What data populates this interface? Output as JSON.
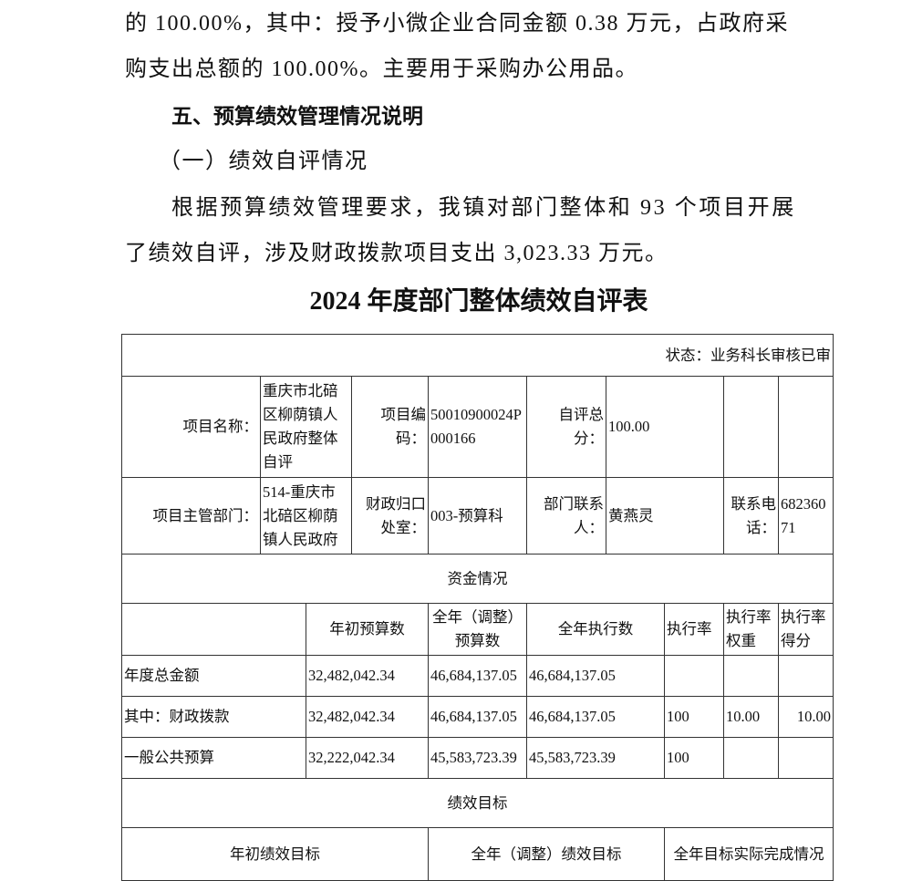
{
  "body": {
    "line1": "的 100.00%，其中：授予小微企业合同金额 0.38 万元，占政府采",
    "line2": "购支出总额的 100.00%。主要用于采购办公用品。",
    "heading5": "五、预算绩效管理情况说明",
    "subheading1": "（一）绩效自评情况",
    "line3": "根据预算绩效管理要求，我镇对部门整体和 93 个项目开展",
    "line4": "了绩效自评，涉及财政拨款项目支出 3,023.33 万元。"
  },
  "table": {
    "title": "2024 年度部门整体绩效自评表",
    "status": "状态：业务科长审核已审",
    "project_name_label": "项目名称：",
    "project_name": "重庆市北碚区柳荫镇人民政府整体自评",
    "project_code_label": "项目编码：",
    "project_code": "50010900024P000166",
    "score_label": "自评总分：",
    "score": "100.00",
    "dept_label": "项目主管部门：",
    "dept": "514-重庆市北碚区柳荫镇人民政府",
    "office_label": "财政归口处室：",
    "office": "003-预算科",
    "contact_label": "部门联系人：",
    "contact": "黄燕灵",
    "phone_label": "联系电话：",
    "phone": "68236071",
    "funds_header": "资金情况",
    "funds_columns": [
      "",
      "年初预算数",
      "全年（调整）预算数",
      "全年执行数",
      "执行率",
      "执行率权重",
      "执行率得分"
    ],
    "funds_rows": [
      [
        "年度总金额",
        "32,482,042.34",
        "46,684,137.05",
        "46,684,137.05",
        "",
        "",
        ""
      ],
      [
        "其中：财政拨款",
        "32,482,042.34",
        "46,684,137.05",
        "46,684,137.05",
        "100",
        "10.00",
        "10.00"
      ],
      [
        "一般公共预算",
        "32,222,042.34",
        "45,583,723.39",
        "45,583,723.39",
        "100",
        "",
        ""
      ]
    ],
    "goals_header": "绩效目标",
    "goals_columns": [
      "年初绩效目标",
      "全年（调整）绩效目标",
      "全年目标实际完成情况"
    ]
  }
}
